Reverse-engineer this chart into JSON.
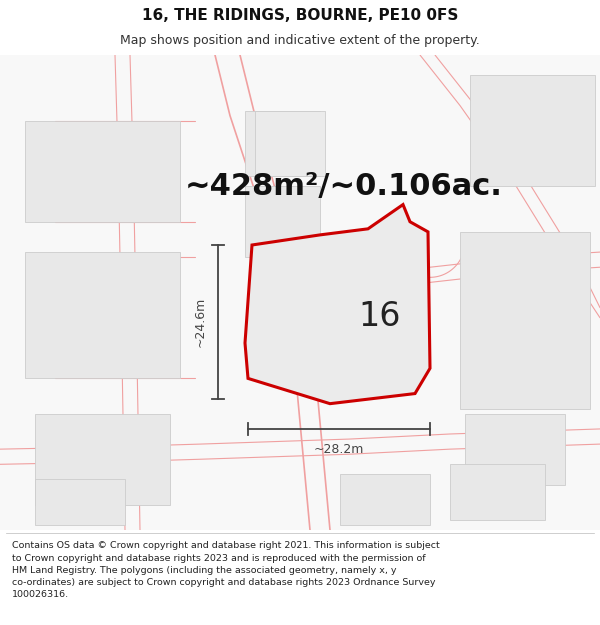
{
  "title": "16, THE RIDINGS, BOURNE, PE10 0FS",
  "subtitle": "Map shows position and indicative extent of the property.",
  "area_text": "~428m²/~0.106ac.",
  "plot_label": "16",
  "dim_width": "~28.2m",
  "dim_height": "~24.6m",
  "footer_text": "Contains OS data © Crown copyright and database right 2021. This information is subject\nto Crown copyright and database rights 2023 and is reproduced with the permission of\nHM Land Registry. The polygons (including the associated geometry, namely x, y\nco-ordinates) are subject to Crown copyright and database rights 2023 Ordnance Survey\n100026316.",
  "map_bg": "#f7f7f7",
  "road_color": "#fadadd",
  "building_fill": "#e8e8e8",
  "building_edge": "#cccccc",
  "road_line_color": "#f0a0a0",
  "plot_fill": "#ebebeb",
  "plot_edge": "#cc0000",
  "dim_color": "#444444",
  "title_fontsize": 11,
  "subtitle_fontsize": 9,
  "area_fontsize": 22,
  "label_fontsize": 24,
  "footer_fontsize": 6.8,
  "title_color": "#111111",
  "footer_color": "#222222"
}
